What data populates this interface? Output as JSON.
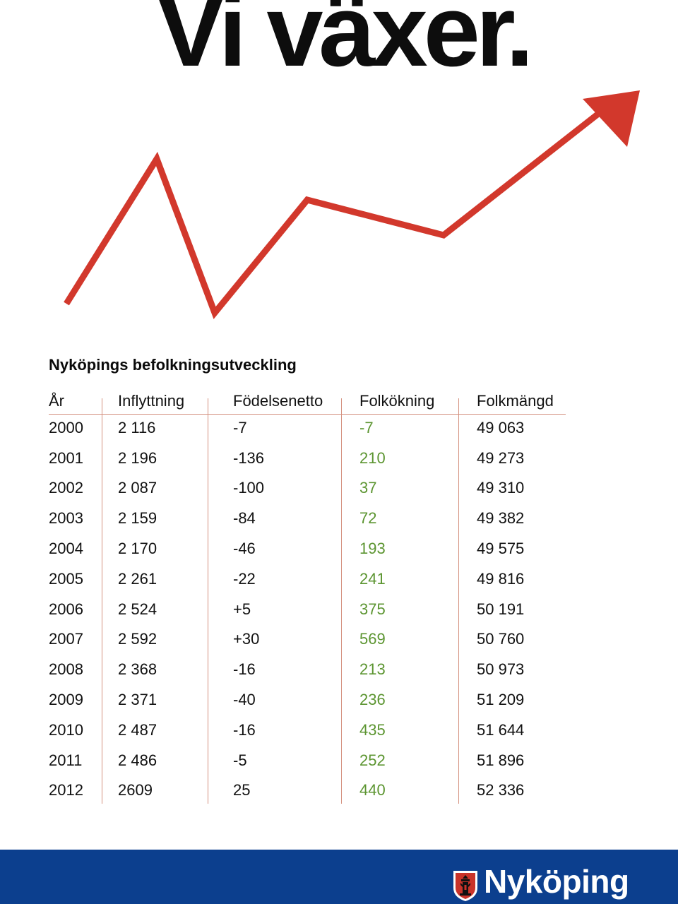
{
  "headline": "Vi växer.",
  "colors": {
    "accent_red": "#d2382c",
    "increase_green": "#5c9531",
    "band_blue": "#0c3f8e",
    "rule": "#d4917f"
  },
  "table": {
    "title": "Nyköpings befolkningsutveckling",
    "columns": [
      "År",
      "Inflyttning",
      "Födelsenetto",
      "Folkökning",
      "Folkmängd"
    ],
    "rows": [
      [
        "2000",
        "2 116",
        "-7",
        "-7",
        "49 063"
      ],
      [
        "2001",
        "2 196",
        "-136",
        "210",
        "49 273"
      ],
      [
        "2002",
        "2 087",
        "-100",
        "37",
        "49 310"
      ],
      [
        "2003",
        "2 159",
        "-84",
        "72",
        "49 382"
      ],
      [
        "2004",
        "2 170",
        "-46",
        "193",
        "49 575"
      ],
      [
        "2005",
        "2 261",
        "-22",
        "241",
        "49 816"
      ],
      [
        "2006",
        "2 524",
        "+5",
        "375",
        "50 191"
      ],
      [
        "2007",
        "2 592",
        "+30",
        "569",
        "50 760"
      ],
      [
        "2008",
        "2 368",
        "-16",
        "213",
        "50 973"
      ],
      [
        "2009",
        "2 371",
        "-40",
        "236",
        "51 209"
      ],
      [
        "2010",
        "2 487",
        "-16",
        "435",
        "51 644"
      ],
      [
        "2011",
        "2 486",
        "-5",
        "252",
        "51 896"
      ],
      [
        "2012",
        "2609",
        "25",
        "440",
        "52 336"
      ]
    ]
  },
  "footer": {
    "brand": "Nyköping",
    "crest_icon": "coat-of-arms-icon"
  }
}
